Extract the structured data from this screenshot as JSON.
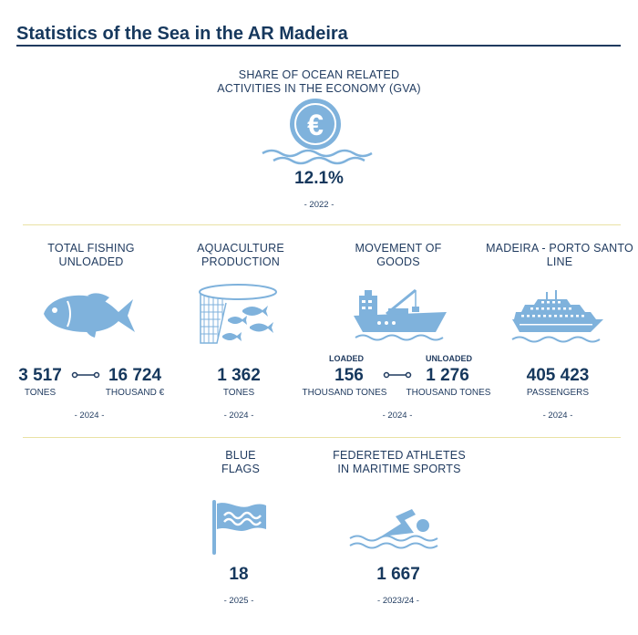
{
  "header": {
    "title": "Statistics of the Sea in the AR Madeira"
  },
  "colors": {
    "accent_dark": "#16385d",
    "icon_blue": "#7fb2dc",
    "separator": "#e9e2a4"
  },
  "gva": {
    "label_line1": "SHARE OF OCEAN RELATED",
    "label_line2": "ACTIVITIES IN THE ECONOMY (GVA)",
    "icon": "euro-coin-icon",
    "value": "12.1%",
    "year": "- 2022 -"
  },
  "fishing": {
    "label_line1": "TOTAL FISHING",
    "label_line2": "UNLOADED",
    "icon": "fish-icon",
    "value1": "3 517",
    "unit1": "TONES",
    "value2": "16 724",
    "unit2": "THOUSAND €",
    "year": "- 2024 -"
  },
  "aquaculture": {
    "label_line1": "AQUACULTURE",
    "label_line2": "PRODUCTION",
    "icon": "fish-net-icon",
    "value": "1 362",
    "unit": "TONES",
    "year": "- 2024 -"
  },
  "goods": {
    "label_line1": "MOVEMENT OF",
    "label_line2": "GOODS",
    "icon": "cargo-ship-icon",
    "tag1": "LOADED",
    "value1": "156",
    "unit1": "THOUSAND TONES",
    "tag2": "UNLOADED",
    "value2": "1 276",
    "unit2": "THOUSAND TONES",
    "year": "- 2024 -"
  },
  "ferry": {
    "label_line1": "MADEIRA - PORTO SANTO",
    "label_line2": "LINE",
    "icon": "ferry-icon",
    "value": "405 423",
    "unit": "PASSENGERS",
    "year": "- 2024 -"
  },
  "flags": {
    "label_line1": "BLUE",
    "label_line2": "FLAGS",
    "icon": "blue-flag-icon",
    "value": "18",
    "year": "- 2025 -"
  },
  "athletes": {
    "label_line1": "FEDERETED ATHLETES",
    "label_line2": "IN MARITIME SPORTS",
    "icon": "swimmer-icon",
    "value": "1 667",
    "year": "- 2023/24 -"
  }
}
